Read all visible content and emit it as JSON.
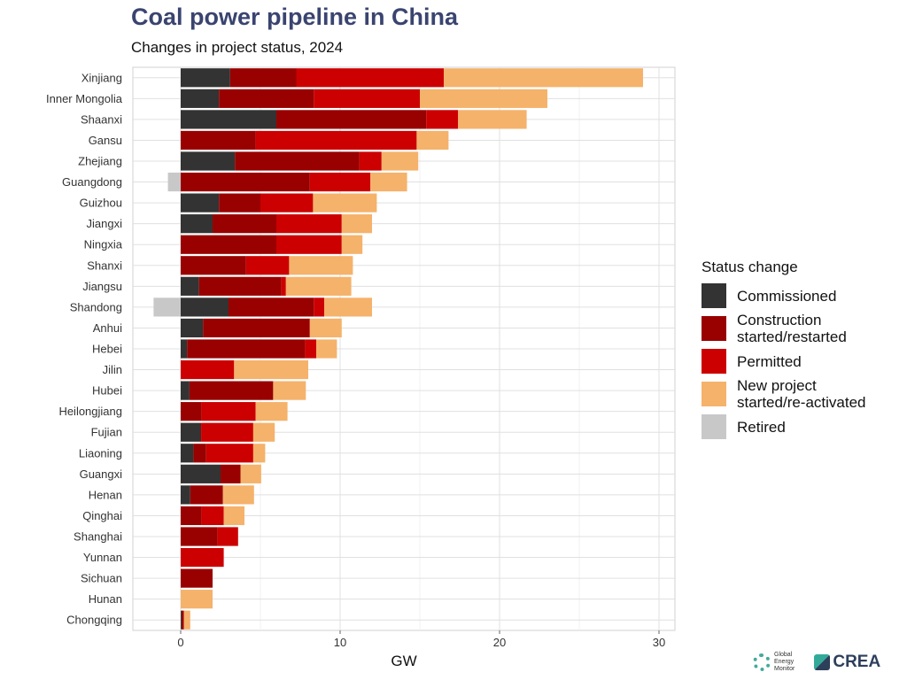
{
  "chart_data": {
    "type": "bar",
    "orientation": "horizontal",
    "stacked": true,
    "title": "Coal power pipeline in China",
    "subtitle": "Changes in project status, 2024",
    "xlabel": "GW",
    "ylabel": "",
    "xlim": [
      -3,
      31
    ],
    "xticks": [
      0,
      10,
      20,
      30
    ],
    "grid": true,
    "legend_title": "Status change",
    "legend_position": "right",
    "categories": [
      "Xinjiang",
      "Inner Mongolia",
      "Shaanxi",
      "Gansu",
      "Zhejiang",
      "Guangdong",
      "Guizhou",
      "Jiangxi",
      "Ningxia",
      "Shanxi",
      "Jiangsu",
      "Shandong",
      "Anhui",
      "Hebei",
      "Jilin",
      "Hubei",
      "Heilongjiang",
      "Fujian",
      "Liaoning",
      "Guangxi",
      "Henan",
      "Qinghai",
      "Shanghai",
      "Yunnan",
      "Sichuan",
      "Hunan",
      "Chongqing"
    ],
    "series": [
      {
        "name": "Commissioned",
        "color": "#333333",
        "values": [
          3.1,
          2.4,
          6.0,
          0,
          3.4,
          0,
          2.4,
          2.0,
          0,
          0,
          1.15,
          3.0,
          1.4,
          0.4,
          0,
          0.55,
          0,
          1.25,
          0.8,
          2.5,
          0.6,
          0,
          0,
          0,
          0,
          0,
          0.05
        ]
      },
      {
        "name": "Construction\nstarted/restarted",
        "color": "#990000",
        "values": [
          4.15,
          5.95,
          9.4,
          4.7,
          7.8,
          8.1,
          2.6,
          4.0,
          6.0,
          4.1,
          5.15,
          5.35,
          6.7,
          7.4,
          0,
          5.25,
          1.3,
          0.05,
          0.8,
          1.25,
          2.05,
          1.3,
          2.3,
          0,
          2.0,
          0,
          0.15
        ]
      },
      {
        "name": "Permitted",
        "color": "#cc0000",
        "values": [
          9.25,
          6.65,
          2.0,
          10.1,
          1.4,
          3.8,
          3.3,
          4.1,
          4.1,
          2.7,
          0.3,
          0.65,
          0,
          0.7,
          3.35,
          0,
          3.4,
          3.25,
          2.95,
          0,
          0,
          1.4,
          1.3,
          2.7,
          0,
          0,
          0
        ]
      },
      {
        "name": "New project\nstarted/re-activated",
        "color": "#f5b26b",
        "values": [
          12.5,
          8.0,
          4.3,
          2.0,
          2.3,
          2.3,
          4.0,
          1.9,
          1.3,
          4.0,
          4.1,
          3.0,
          2.0,
          1.3,
          4.65,
          2.05,
          2.0,
          1.35,
          0.75,
          1.3,
          1.95,
          1.3,
          0,
          0,
          0,
          2.0,
          0.4
        ]
      },
      {
        "name": "Retired",
        "color": "#c8c8c8",
        "values": [
          0,
          0,
          0,
          0,
          0,
          -0.8,
          0,
          0,
          0,
          0,
          0,
          -1.7,
          0,
          0,
          0,
          0,
          0,
          0,
          0,
          0,
          0,
          0,
          0,
          0,
          0,
          0,
          0
        ]
      }
    ]
  },
  "logos": {
    "gem": "Global\nEnergy\nMonitor",
    "crea": "CREA"
  }
}
